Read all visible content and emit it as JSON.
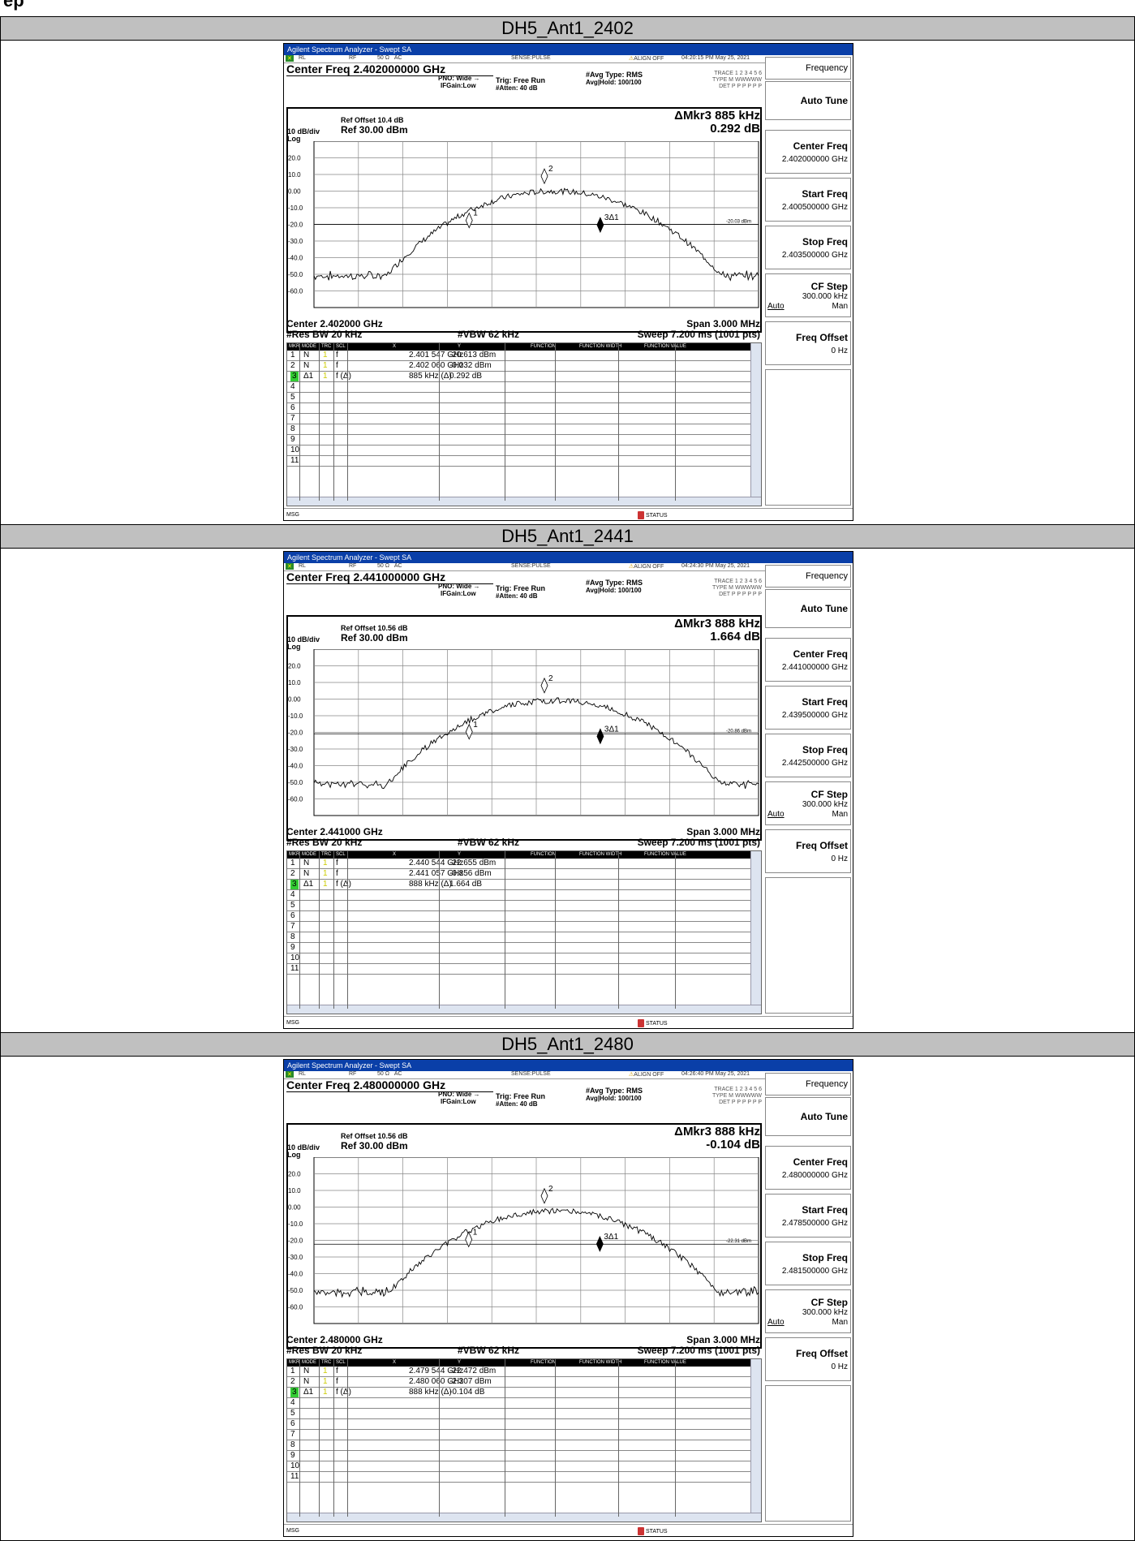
{
  "top_partial_text": "ep",
  "rows": [
    {
      "title": "DH5_Ant1_2402",
      "analyzer": {
        "window_title": "Agilent Spectrum Analyzer - Swept SA",
        "status": {
          "rl": "RL",
          "rf": "RF",
          "impedance": "50 Ω",
          "coupling": "AC",
          "sense": "SENSE:PULSE",
          "align": "ALIGN OFF",
          "timestamp": "04:20:15 PM May 25, 2021"
        },
        "center_freq_label": "Center Freq 2.402000000 GHz",
        "pno": "PNO: Wide",
        "ifgain": "IFGain:Low",
        "trig": "Trig: Free Run",
        "atten": "#Atten: 40 dB",
        "avg_type": "#Avg Type: RMS",
        "avg_hold": "Avg|Hold: 100/100",
        "trace_row": "TRACE 1 2 3 4 5 6",
        "type_row": "TYPE M WWWWW",
        "det_row": "DET P P P P P P",
        "marker_readout": "ΔMkr3 885 kHz",
        "marker_value": "0.292 dB",
        "ref_offset": "Ref Offset 10.4 dB",
        "ref_level": "Ref 30.00 dBm",
        "scale": "10 dB/div",
        "scale_type": "Log",
        "y_ticks": [
          "20.0",
          "10.0",
          "0.00",
          "-10.0",
          "-20.0",
          "-30.0",
          "-40.0",
          "-50.0",
          "-60.0"
        ],
        "threshold_label": "-20.03 dBm",
        "threshold_db": -20.03,
        "center_label": "Center 2.402000 GHz",
        "res_bw": "#Res BW 20 kHz",
        "vbw": "#VBW 62 kHz",
        "span": "Span 3.000 MHz",
        "sweep": "Sweep  7.200 ms (1001 pts)",
        "marker_labels": {
          "m1": "1",
          "m2": "2",
          "m3": "3Δ1"
        },
        "markers_table": {
          "headers": [
            "MKR",
            "MODE",
            "TRC",
            "SCL",
            "X",
            "Y",
            "FUNCTION",
            "FUNCTION WIDTH",
            "FUNCTION VALUE"
          ],
          "rows": [
            {
              "mkr": "1",
              "mode": "N",
              "trc": "1",
              "scl": "f",
              "x": "2.401 547 GHz",
              "y": "-20.613 dBm"
            },
            {
              "mkr": "2",
              "mode": "N",
              "trc": "1",
              "scl": "f",
              "x": "2.402 060 GHz",
              "y": "-0.032 dBm"
            },
            {
              "mkr": "3",
              "mode": "Δ1",
              "trc": "1",
              "scl": "f (Δ)",
              "x": "885 kHz (Δ)",
              "y": "0.292 dB"
            },
            {
              "mkr": "4"
            },
            {
              "mkr": "5"
            },
            {
              "mkr": "6"
            },
            {
              "mkr": "7"
            },
            {
              "mkr": "8"
            },
            {
              "mkr": "9"
            },
            {
              "mkr": "10"
            },
            {
              "mkr": "11"
            }
          ]
        },
        "msg": "MSG",
        "status_label": "STATUS",
        "softkeys": {
          "frequency": "Frequency",
          "auto_tune": "Auto Tune",
          "center_freq": "Center Freq",
          "center_freq_value": "2.402000000 GHz",
          "start_freq": "Start Freq",
          "start_freq_value": "2.400500000 GHz",
          "stop_freq": "Stop Freq",
          "stop_freq_value": "2.403500000 GHz",
          "cf_step": "CF Step",
          "cf_step_value": "300.000 kHz",
          "auto": "Auto",
          "man": "Man",
          "freq_offset": "Freq Offset",
          "freq_offset_value": "0 Hz"
        }
      }
    },
    {
      "title": "DH5_Ant1_2441",
      "analyzer": {
        "window_title": "Agilent Spectrum Analyzer - Swept SA",
        "status": {
          "rl": "RL",
          "rf": "RF",
          "impedance": "50 Ω",
          "coupling": "AC",
          "sense": "SENSE:PULSE",
          "align": "ALIGN OFF",
          "timestamp": "04:24:30 PM May 25, 2021"
        },
        "center_freq_label": "Center Freq 2.441000000 GHz",
        "pno": "PNO: Wide",
        "ifgain": "IFGain:Low",
        "trig": "Trig: Free Run",
        "atten": "#Atten: 40 dB",
        "avg_type": "#Avg Type: RMS",
        "avg_hold": "Avg|Hold: 100/100",
        "trace_row": "TRACE 1 2 3 4 5 6",
        "type_row": "TYPE M WWWWW",
        "det_row": "DET P P P P P P",
        "marker_readout": "ΔMkr3 888 kHz",
        "marker_value": "1.664 dB",
        "ref_offset": "Ref Offset 10.56 dB",
        "ref_level": "Ref 30.00 dBm",
        "scale": "10 dB/div",
        "scale_type": "Log",
        "y_ticks": [
          "20.0",
          "10.0",
          "0.00",
          "-10.0",
          "-20.0",
          "-30.0",
          "-40.0",
          "-50.0",
          "-60.0"
        ],
        "threshold_label": "-20.86 dBm",
        "threshold_db": -20.86,
        "center_label": "Center 2.441000 GHz",
        "res_bw": "#Res BW 20 kHz",
        "vbw": "#VBW 62 kHz",
        "span": "Span 3.000 MHz",
        "sweep": "Sweep  7.200 ms (1001 pts)",
        "marker_labels": {
          "m1": "1",
          "m2": "2",
          "m3": "3Δ1"
        },
        "markers_table": {
          "headers": [
            "MKR",
            "MODE",
            "TRC",
            "SCL",
            "X",
            "Y",
            "FUNCTION",
            "FUNCTION WIDTH",
            "FUNCTION VALUE"
          ],
          "rows": [
            {
              "mkr": "1",
              "mode": "N",
              "trc": "1",
              "scl": "f",
              "x": "2.440 544 GHz",
              "y": "-22.655 dBm"
            },
            {
              "mkr": "2",
              "mode": "N",
              "trc": "1",
              "scl": "f",
              "x": "2.441 057 GHz",
              "y": "-0.856 dBm"
            },
            {
              "mkr": "3",
              "mode": "Δ1",
              "trc": "1",
              "scl": "f (Δ)",
              "x": "888 kHz (Δ)",
              "y": "1.664 dB"
            },
            {
              "mkr": "4"
            },
            {
              "mkr": "5"
            },
            {
              "mkr": "6"
            },
            {
              "mkr": "7"
            },
            {
              "mkr": "8"
            },
            {
              "mkr": "9"
            },
            {
              "mkr": "10"
            },
            {
              "mkr": "11"
            }
          ]
        },
        "msg": "MSG",
        "status_label": "STATUS",
        "softkeys": {
          "frequency": "Frequency",
          "auto_tune": "Auto Tune",
          "center_freq": "Center Freq",
          "center_freq_value": "2.441000000 GHz",
          "start_freq": "Start Freq",
          "start_freq_value": "2.439500000 GHz",
          "stop_freq": "Stop Freq",
          "stop_freq_value": "2.442500000 GHz",
          "cf_step": "CF Step",
          "cf_step_value": "300.000 kHz",
          "auto": "Auto",
          "man": "Man",
          "freq_offset": "Freq Offset",
          "freq_offset_value": "0 Hz"
        }
      }
    },
    {
      "title": "DH5_Ant1_2480",
      "analyzer": {
        "window_title": "Agilent Spectrum Analyzer - Swept SA",
        "status": {
          "rl": "RL",
          "rf": "RF",
          "impedance": "50 Ω",
          "coupling": "AC",
          "sense": "SENSE:PULSE",
          "align": "ALIGN OFF",
          "timestamp": "04:26:40 PM May 25, 2021"
        },
        "center_freq_label": "Center Freq 2.480000000 GHz",
        "pno": "PNO: Wide",
        "ifgain": "IFGain:Low",
        "trig": "Trig: Free Run",
        "atten": "#Atten: 40 dB",
        "avg_type": "#Avg Type: RMS",
        "avg_hold": "Avg|Hold: 100/100",
        "trace_row": "TRACE 1 2 3 4 5 6",
        "type_row": "TYPE M WWWWW",
        "det_row": "DET P P P P P P",
        "marker_readout": "ΔMkr3 888 kHz",
        "marker_value": "-0.104 dB",
        "ref_offset": "Ref Offset 10.56 dB",
        "ref_level": "Ref 30.00 dBm",
        "scale": "10 dB/div",
        "scale_type": "Log",
        "y_ticks": [
          "20.0",
          "10.0",
          "0.00",
          "-10.0",
          "-20.0",
          "-30.0",
          "-40.0",
          "-50.0",
          "-60.0"
        ],
        "threshold_label": "-22.31 dBm",
        "threshold_db": -22.31,
        "center_label": "Center 2.480000 GHz",
        "res_bw": "#Res BW 20 kHz",
        "vbw": "#VBW 62 kHz",
        "span": "Span 3.000 MHz",
        "sweep": "Sweep  7.200 ms (1001 pts)",
        "marker_labels": {
          "m1": "1",
          "m2": "2",
          "m3": "3Δ1"
        },
        "markers_table": {
          "headers": [
            "MKR",
            "MODE",
            "TRC",
            "SCL",
            "X",
            "Y",
            "FUNCTION",
            "FUNCTION WIDTH",
            "FUNCTION VALUE"
          ],
          "rows": [
            {
              "mkr": "1",
              "mode": "N",
              "trc": "1",
              "scl": "f",
              "x": "2.479 544 GHz",
              "y": "-22.472 dBm"
            },
            {
              "mkr": "2",
              "mode": "N",
              "trc": "1",
              "scl": "f",
              "x": "2.480 060 GHz",
              "y": "-2.307 dBm"
            },
            {
              "mkr": "3",
              "mode": "Δ1",
              "trc": "1",
              "scl": "f (Δ)",
              "x": "888 kHz (Δ)",
              "y": "-0.104 dB"
            },
            {
              "mkr": "4"
            },
            {
              "mkr": "5"
            },
            {
              "mkr": "6"
            },
            {
              "mkr": "7"
            },
            {
              "mkr": "8"
            },
            {
              "mkr": "9"
            },
            {
              "mkr": "10"
            },
            {
              "mkr": "11"
            }
          ]
        },
        "msg": "MSG",
        "status_label": "STATUS",
        "softkeys": {
          "frequency": "Frequency",
          "auto_tune": "Auto Tune",
          "center_freq": "Center Freq",
          "center_freq_value": "2.480000000 GHz",
          "start_freq": "Start Freq",
          "start_freq_value": "2.478500000 GHz",
          "stop_freq": "Stop Freq",
          "stop_freq_value": "2.481500000 GHz",
          "cf_step": "CF Step",
          "cf_step_value": "300.000 kHz",
          "auto": "Auto",
          "man": "Man",
          "freq_offset": "Freq Offset",
          "freq_offset_value": "0 Hz"
        }
      }
    }
  ]
}
